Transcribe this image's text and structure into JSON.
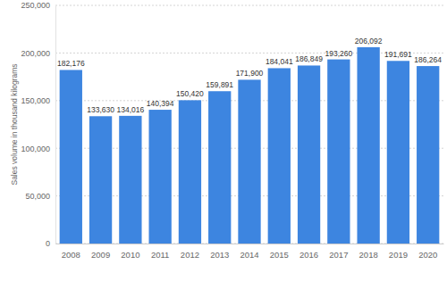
{
  "chart_data": {
    "type": "bar",
    "y_label": "Sales volume in thousand kilograms",
    "categories": [
      "2008",
      "2009",
      "2010",
      "2011",
      "2012",
      "2013",
      "2014",
      "2015",
      "2016",
      "2017",
      "2018",
      "2019",
      "2020"
    ],
    "values": [
      182176,
      133630,
      134016,
      140394,
      150420,
      159891,
      171900,
      184041,
      186849,
      193260,
      206092,
      191691,
      186264
    ],
    "value_labels": [
      "182,176",
      "133,630",
      "134,016",
      "140,394",
      "150,420",
      "159,891",
      "171,900",
      "184,041",
      "186,849",
      "193,260",
      "206,092",
      "191,691",
      "186,264"
    ],
    "color": "#3d85e0",
    "ylim": [
      0,
      250000
    ],
    "yticks": [
      0,
      {
        "value": 50000,
        "label": "50,000"
      },
      {
        "value": 100000,
        "label": "100,000"
      },
      {
        "value": 150000,
        "label": "150,000"
      },
      {
        "value": 200000,
        "label": "200,000"
      },
      {
        "value": 250000,
        "label": "250,000"
      }
    ],
    "grid": true,
    "data_labels": true
  }
}
